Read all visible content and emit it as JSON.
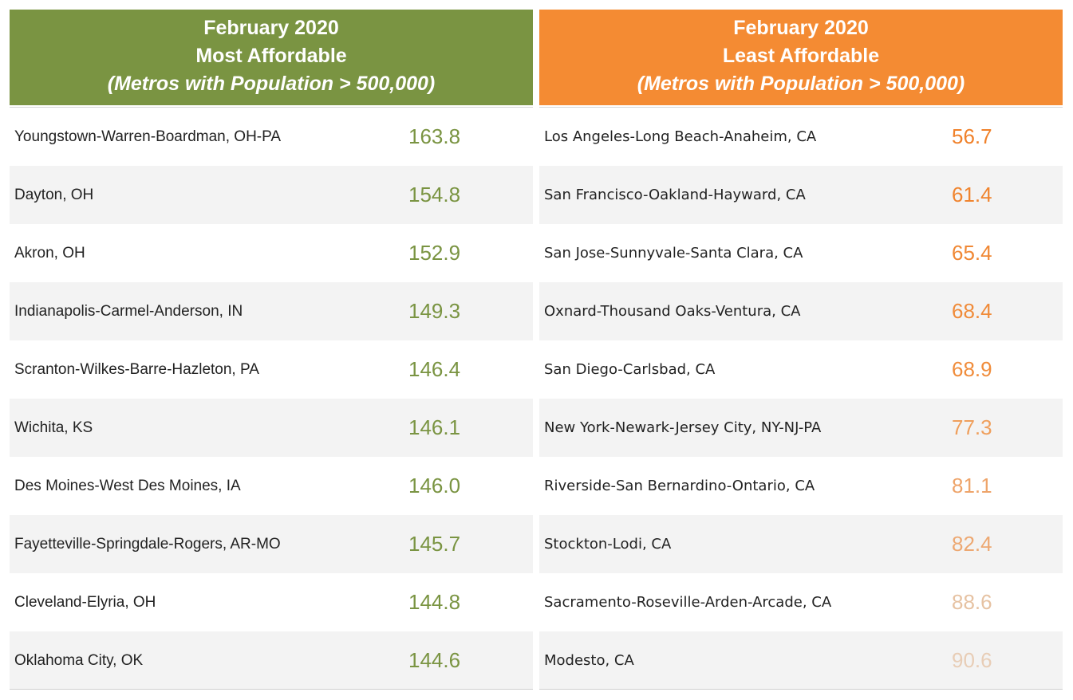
{
  "chart_data": [
    {
      "type": "table",
      "title_lines": [
        "February 2020",
        "Most Affordable",
        "(Metros with Population > 500,000)"
      ],
      "header_color": "#7a9442",
      "rows": [
        {
          "metro": "Youngstown-Warren-Boardman, OH-PA",
          "value": "163.8",
          "color": "#7a9442"
        },
        {
          "metro": "Dayton, OH",
          "value": "154.8",
          "color": "#7a9442"
        },
        {
          "metro": "Akron, OH",
          "value": "152.9",
          "color": "#7a9442"
        },
        {
          "metro": "Indianapolis-Carmel-Anderson, IN",
          "value": "149.3",
          "color": "#7a9442"
        },
        {
          "metro": "Scranton-Wilkes-Barre-Hazleton, PA",
          "value": "146.4",
          "color": "#7a9442"
        },
        {
          "metro": "Wichita, KS",
          "value": "146.1",
          "color": "#7a9442"
        },
        {
          "metro": "Des Moines-West Des Moines, IA",
          "value": "146.0",
          "color": "#7a9442"
        },
        {
          "metro": "Fayetteville-Springdale-Rogers, AR-MO",
          "value": "145.7",
          "color": "#7a9442"
        },
        {
          "metro": "Cleveland-Elyria, OH",
          "value": "144.8",
          "color": "#7a9442"
        },
        {
          "metro": "Oklahoma City, OK",
          "value": "144.6",
          "color": "#7a9442"
        }
      ]
    },
    {
      "type": "table",
      "title_lines": [
        "February 2020",
        "Least Affordable",
        "(Metros with Population > 500,000)"
      ],
      "header_color": "#f48b33",
      "rows": [
        {
          "metro": "Los Angeles-Long Beach-Anaheim, CA",
          "value": "56.7",
          "color": "#f0812a"
        },
        {
          "metro": "San Francisco-Oakland-Hayward, CA",
          "value": "61.4",
          "color": "#f0842e"
        },
        {
          "metro": "San Jose-Sunnyvale-Santa Clara, CA",
          "value": "65.4",
          "color": "#f08835"
        },
        {
          "metro": "Oxnard-Thousand Oaks-Ventura, CA",
          "value": "68.4",
          "color": "#f08b39"
        },
        {
          "metro": "San Diego-Carlsbad, CA",
          "value": "68.9",
          "color": "#f08c3b"
        },
        {
          "metro": "New York-Newark-Jersey City, NY-NJ-PA",
          "value": "77.3",
          "color": "#ef9f5c"
        },
        {
          "metro": "Riverside-San Bernardino-Ontario, CA",
          "value": "81.1",
          "color": "#eea46a"
        },
        {
          "metro": "Stockton-Lodi, CA",
          "value": "82.4",
          "color": "#eda872"
        },
        {
          "metro": "Sacramento-Roseville-Arden-Arcade, CA",
          "value": "88.6",
          "color": "#e6c2a2"
        },
        {
          "metro": "Modesto, CA",
          "value": "90.6",
          "color": "#e8cdb6"
        }
      ]
    }
  ]
}
